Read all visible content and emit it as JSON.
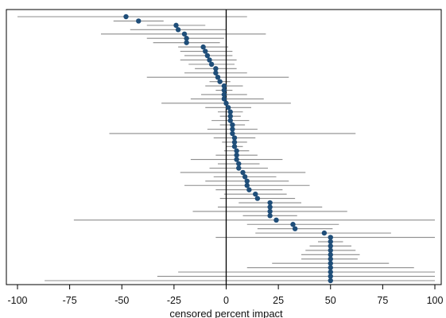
{
  "chart_data": {
    "type": "scatter",
    "subtype": "forest-plot",
    "title": "",
    "xlabel": "censored percent impact",
    "ylabel": "",
    "xlim": [
      -102,
      100
    ],
    "x_ticks": [
      -100,
      -75,
      -50,
      -25,
      0,
      25,
      50,
      75,
      100
    ],
    "x_tick_labels": [
      "-100",
      "-75",
      "-50",
      "-25",
      "0",
      "25",
      "50",
      "75",
      "100"
    ],
    "reference_line_x": 0,
    "grid": false,
    "legend": "none",
    "colors": {
      "point": "#1f4e79",
      "interval": "#8c8c8c",
      "reference_line": "#000000",
      "axis": "#000000"
    },
    "points": [
      {
        "estimate": -48,
        "low": -100,
        "high": 10
      },
      {
        "estimate": -42,
        "low": -54,
        "high": -30
      },
      {
        "estimate": -24,
        "low": -38,
        "high": -10
      },
      {
        "estimate": -23,
        "low": -46,
        "high": 0
      },
      {
        "estimate": -20,
        "low": -60,
        "high": 19
      },
      {
        "estimate": -19,
        "low": -38,
        "high": -1
      },
      {
        "estimate": -19,
        "low": -35,
        "high": -3
      },
      {
        "estimate": -11,
        "low": -23,
        "high": 1
      },
      {
        "estimate": -10,
        "low": -22,
        "high": 3
      },
      {
        "estimate": -9,
        "low": -20,
        "high": 3
      },
      {
        "estimate": -8,
        "low": -22,
        "high": 5
      },
      {
        "estimate": -7,
        "low": -18,
        "high": 4
      },
      {
        "estimate": -5,
        "low": -15,
        "high": 5
      },
      {
        "estimate": -5,
        "low": -20,
        "high": 10
      },
      {
        "estimate": -4,
        "low": -38,
        "high": 30
      },
      {
        "estimate": -3,
        "low": -8,
        "high": 2
      },
      {
        "estimate": -1,
        "low": -10,
        "high": 8
      },
      {
        "estimate": -1,
        "low": -5,
        "high": 3
      },
      {
        "estimate": -1,
        "low": -12,
        "high": 10
      },
      {
        "estimate": -1,
        "low": -17,
        "high": 18
      },
      {
        "estimate": 0,
        "low": -31,
        "high": 31
      },
      {
        "estimate": 1,
        "low": -10,
        "high": 12
      },
      {
        "estimate": 2,
        "low": -4,
        "high": 8
      },
      {
        "estimate": 2,
        "low": -3,
        "high": 7
      },
      {
        "estimate": 2,
        "low": -7,
        "high": 11
      },
      {
        "estimate": 3,
        "low": -3,
        "high": 9
      },
      {
        "estimate": 3,
        "low": -9,
        "high": 15
      },
      {
        "estimate": 3,
        "low": -56,
        "high": 62
      },
      {
        "estimate": 4,
        "low": -6,
        "high": 14
      },
      {
        "estimate": 4,
        "low": -2,
        "high": 10
      },
      {
        "estimate": 4,
        "low": 0,
        "high": 8
      },
      {
        "estimate": 5,
        "low": -1,
        "high": 11
      },
      {
        "estimate": 5,
        "low": -5,
        "high": 15
      },
      {
        "estimate": 5,
        "low": -17,
        "high": 27
      },
      {
        "estimate": 6,
        "low": -4,
        "high": 16
      },
      {
        "estimate": 6,
        "low": -8,
        "high": 20
      },
      {
        "estimate": 8,
        "low": -22,
        "high": 38
      },
      {
        "estimate": 9,
        "low": -6,
        "high": 24
      },
      {
        "estimate": 10,
        "low": -10,
        "high": 30
      },
      {
        "estimate": 10,
        "low": -20,
        "high": 40
      },
      {
        "estimate": 11,
        "low": -5,
        "high": 27
      },
      {
        "estimate": 14,
        "low": -1,
        "high": 29
      },
      {
        "estimate": 15,
        "low": -3,
        "high": 33
      },
      {
        "estimate": 21,
        "low": 6,
        "high": 36
      },
      {
        "estimate": 21,
        "low": -4,
        "high": 46
      },
      {
        "estimate": 21,
        "low": -16,
        "high": 58
      },
      {
        "estimate": 21,
        "low": 8,
        "high": 34
      },
      {
        "estimate": 24,
        "low": -73,
        "high": 100
      },
      {
        "estimate": 32,
        "low": 10,
        "high": 54
      },
      {
        "estimate": 33,
        "low": 15,
        "high": 51
      },
      {
        "estimate": 47,
        "low": 14,
        "high": 79
      },
      {
        "estimate": 50,
        "low": -5,
        "high": 100
      },
      {
        "estimate": 50,
        "low": 44,
        "high": 56
      },
      {
        "estimate": 50,
        "low": 40,
        "high": 60
      },
      {
        "estimate": 50,
        "low": 38,
        "high": 62
      },
      {
        "estimate": 50,
        "low": 36,
        "high": 64
      },
      {
        "estimate": 50,
        "low": 36,
        "high": 63
      },
      {
        "estimate": 50,
        "low": 22,
        "high": 78
      },
      {
        "estimate": 50,
        "low": 10,
        "high": 90
      },
      {
        "estimate": 50,
        "low": -23,
        "high": 100
      },
      {
        "estimate": 50,
        "low": -33,
        "high": 100
      },
      {
        "estimate": 50,
        "low": -87,
        "high": 100
      }
    ]
  }
}
